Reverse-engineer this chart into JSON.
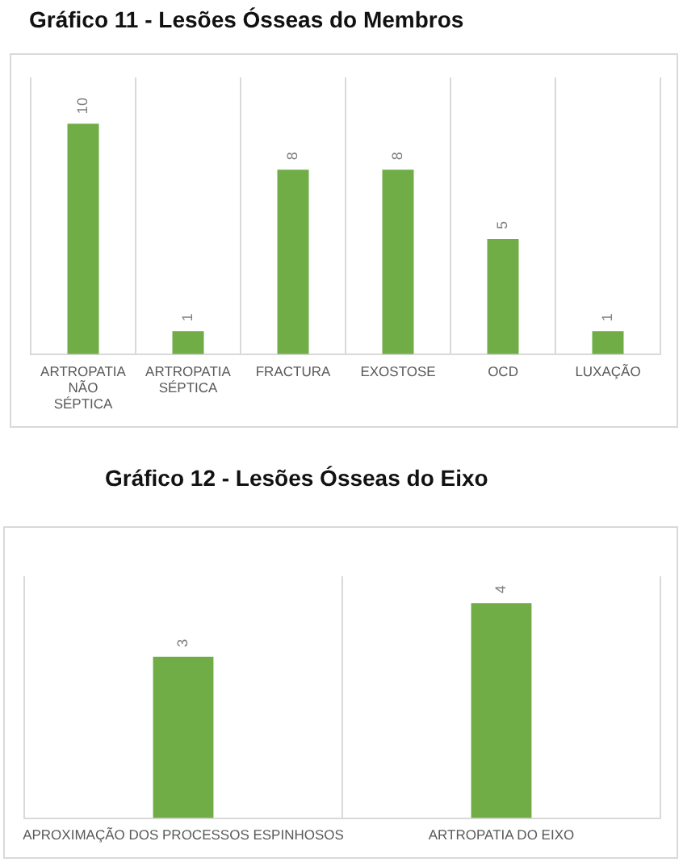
{
  "chart_data": [
    {
      "type": "bar",
      "title": "Gráfico 11 - Lesões Ósseas do Membros",
      "categories": [
        "ARTROPATIA NÃO SÉPTICA",
        "ARTROPATIA SÉPTICA",
        "FRACTURA",
        "EXOSTOSE",
        "OCD",
        "LUXAÇÃO"
      ],
      "values": [
        10,
        1,
        8,
        8,
        5,
        1
      ],
      "color": "#70ad47",
      "data_labels": true,
      "grid": "x"
    },
    {
      "type": "bar",
      "title": "Gráfico 12 - Lesões Ósseas do Eixo",
      "categories": [
        "APROXIMAÇÃO DOS PROCESSOS ESPINHOSOS",
        "ARTROPATIA DO EIXO"
      ],
      "values": [
        3,
        4
      ],
      "color": "#70ad47",
      "data_labels": true,
      "grid": "x"
    }
  ]
}
